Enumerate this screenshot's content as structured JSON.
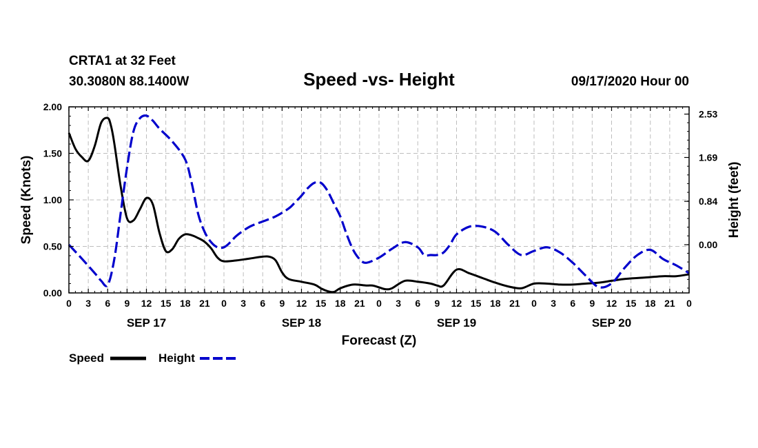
{
  "header": {
    "station_line": "CRTA1 at 32 Feet",
    "coords_line": "30.3080N 88.1400W",
    "main_title": "Speed -vs- Height",
    "run_time": "09/17/2020 Hour 00"
  },
  "chart_data": {
    "type": "line",
    "title": "Speed -vs- Height",
    "xlabel": "Forecast (Z)",
    "ylabel_left": "Speed (Knots)",
    "ylabel_right": "Height (feet)",
    "x_unit": "forecast hour",
    "xlim": [
      0,
      96
    ],
    "ylim_left": [
      0,
      2.0
    ],
    "ylim_right": [
      -0.9338,
      2.6709
    ],
    "grid": true,
    "x_ticks": [
      0,
      3,
      6,
      9,
      12,
      15,
      18,
      21,
      24,
      27,
      30,
      33,
      36,
      39,
      42,
      45,
      48,
      51,
      54,
      57,
      60,
      63,
      66,
      69,
      72,
      75,
      78,
      81,
      84,
      87,
      90,
      93,
      96
    ],
    "x_tick_labels": [
      "0",
      "3",
      "6",
      "9",
      "12",
      "15",
      "18",
      "21",
      "0",
      "3",
      "6",
      "9",
      "12",
      "15",
      "18",
      "21",
      "0",
      "3",
      "6",
      "9",
      "12",
      "15",
      "18",
      "21",
      "0",
      "3",
      "6",
      "9",
      "12",
      "15",
      "18",
      "21",
      "0"
    ],
    "date_labels": [
      {
        "hour": 12,
        "label": "SEP 17"
      },
      {
        "hour": 36,
        "label": "SEP 18"
      },
      {
        "hour": 60,
        "label": "SEP 19"
      },
      {
        "hour": 84,
        "label": "SEP 20"
      }
    ],
    "y_left_ticks": [
      "0.00",
      "0.50",
      "1.00",
      "1.50",
      "2.00"
    ],
    "y_left_tick_values": [
      0,
      0.5,
      1.0,
      1.5,
      2.0
    ],
    "y_right_ticks": [
      "0.00",
      "0.84",
      "1.69",
      "2.53"
    ],
    "y_right_tick_values": [
      0,
      0.84,
      1.69,
      2.53
    ],
    "legend": [
      {
        "name": "Speed",
        "color": "#000000",
        "dash": "solid"
      },
      {
        "name": "Height",
        "color": "#0000cc",
        "dash": "dashed"
      }
    ],
    "series": [
      {
        "name": "Speed",
        "axis": "left",
        "color": "#000000",
        "x": [
          0,
          1,
          2,
          3,
          4,
          5,
          6,
          6.5,
          7,
          8,
          9,
          10,
          11,
          12,
          13,
          14,
          15,
          16,
          17,
          18,
          19,
          20,
          21,
          22,
          23,
          24,
          26,
          28,
          30,
          31,
          32,
          33,
          34,
          36,
          38,
          39,
          40,
          41,
          42,
          44,
          46,
          47,
          48,
          49,
          50,
          52,
          54,
          56,
          57,
          58,
          60,
          62,
          64,
          66,
          68,
          70,
          72,
          74,
          76,
          78,
          80,
          82,
          84,
          86,
          88,
          90,
          92,
          94,
          96
        ],
        "values": [
          1.72,
          1.55,
          1.46,
          1.42,
          1.58,
          1.83,
          1.88,
          1.8,
          1.62,
          1.15,
          0.8,
          0.78,
          0.9,
          1.02,
          0.95,
          0.65,
          0.45,
          0.47,
          0.58,
          0.63,
          0.62,
          0.59,
          0.55,
          0.48,
          0.38,
          0.34,
          0.35,
          0.37,
          0.39,
          0.39,
          0.35,
          0.22,
          0.15,
          0.12,
          0.09,
          0.05,
          0.02,
          0.01,
          0.05,
          0.09,
          0.08,
          0.08,
          0.06,
          0.04,
          0.05,
          0.13,
          0.12,
          0.1,
          0.08,
          0.08,
          0.25,
          0.21,
          0.16,
          0.11,
          0.07,
          0.05,
          0.1,
          0.1,
          0.09,
          0.09,
          0.1,
          0.11,
          0.13,
          0.15,
          0.16,
          0.17,
          0.18,
          0.18,
          0.2
        ]
      },
      {
        "name": "Height",
        "axis": "right",
        "color": "#0000cc",
        "x": [
          0,
          2,
          4,
          5,
          6,
          7,
          8,
          9,
          10,
          11,
          12,
          13,
          14,
          16,
          18,
          19,
          20,
          21,
          22,
          23,
          24,
          25,
          26,
          28,
          30,
          32,
          34,
          35,
          36,
          37,
          38,
          39,
          40,
          41,
          42,
          43,
          44,
          45,
          46,
          48,
          50,
          52,
          54,
          55,
          56,
          57,
          58,
          59,
          60,
          62,
          64,
          66,
          68,
          70,
          72,
          74,
          76,
          78,
          80,
          82,
          84,
          86,
          88,
          90,
          92,
          94,
          96
        ],
        "values": [
          0.0,
          -0.27,
          -0.55,
          -0.7,
          -0.78,
          -0.3,
          0.6,
          1.5,
          2.2,
          2.45,
          2.5,
          2.4,
          2.25,
          2.0,
          1.65,
          1.2,
          0.6,
          0.25,
          0.05,
          -0.05,
          -0.05,
          0.05,
          0.18,
          0.35,
          0.45,
          0.55,
          0.7,
          0.82,
          0.95,
          1.1,
          1.2,
          1.2,
          1.05,
          0.8,
          0.55,
          0.2,
          -0.1,
          -0.28,
          -0.35,
          -0.25,
          -0.08,
          0.05,
          -0.05,
          -0.2,
          -0.2,
          -0.2,
          -0.15,
          0.0,
          0.2,
          0.35,
          0.35,
          0.25,
          0.0,
          -0.2,
          -0.12,
          -0.05,
          -0.15,
          -0.35,
          -0.6,
          -0.82,
          -0.75,
          -0.45,
          -0.2,
          -0.1,
          -0.28,
          -0.4,
          -0.55
        ]
      }
    ]
  }
}
